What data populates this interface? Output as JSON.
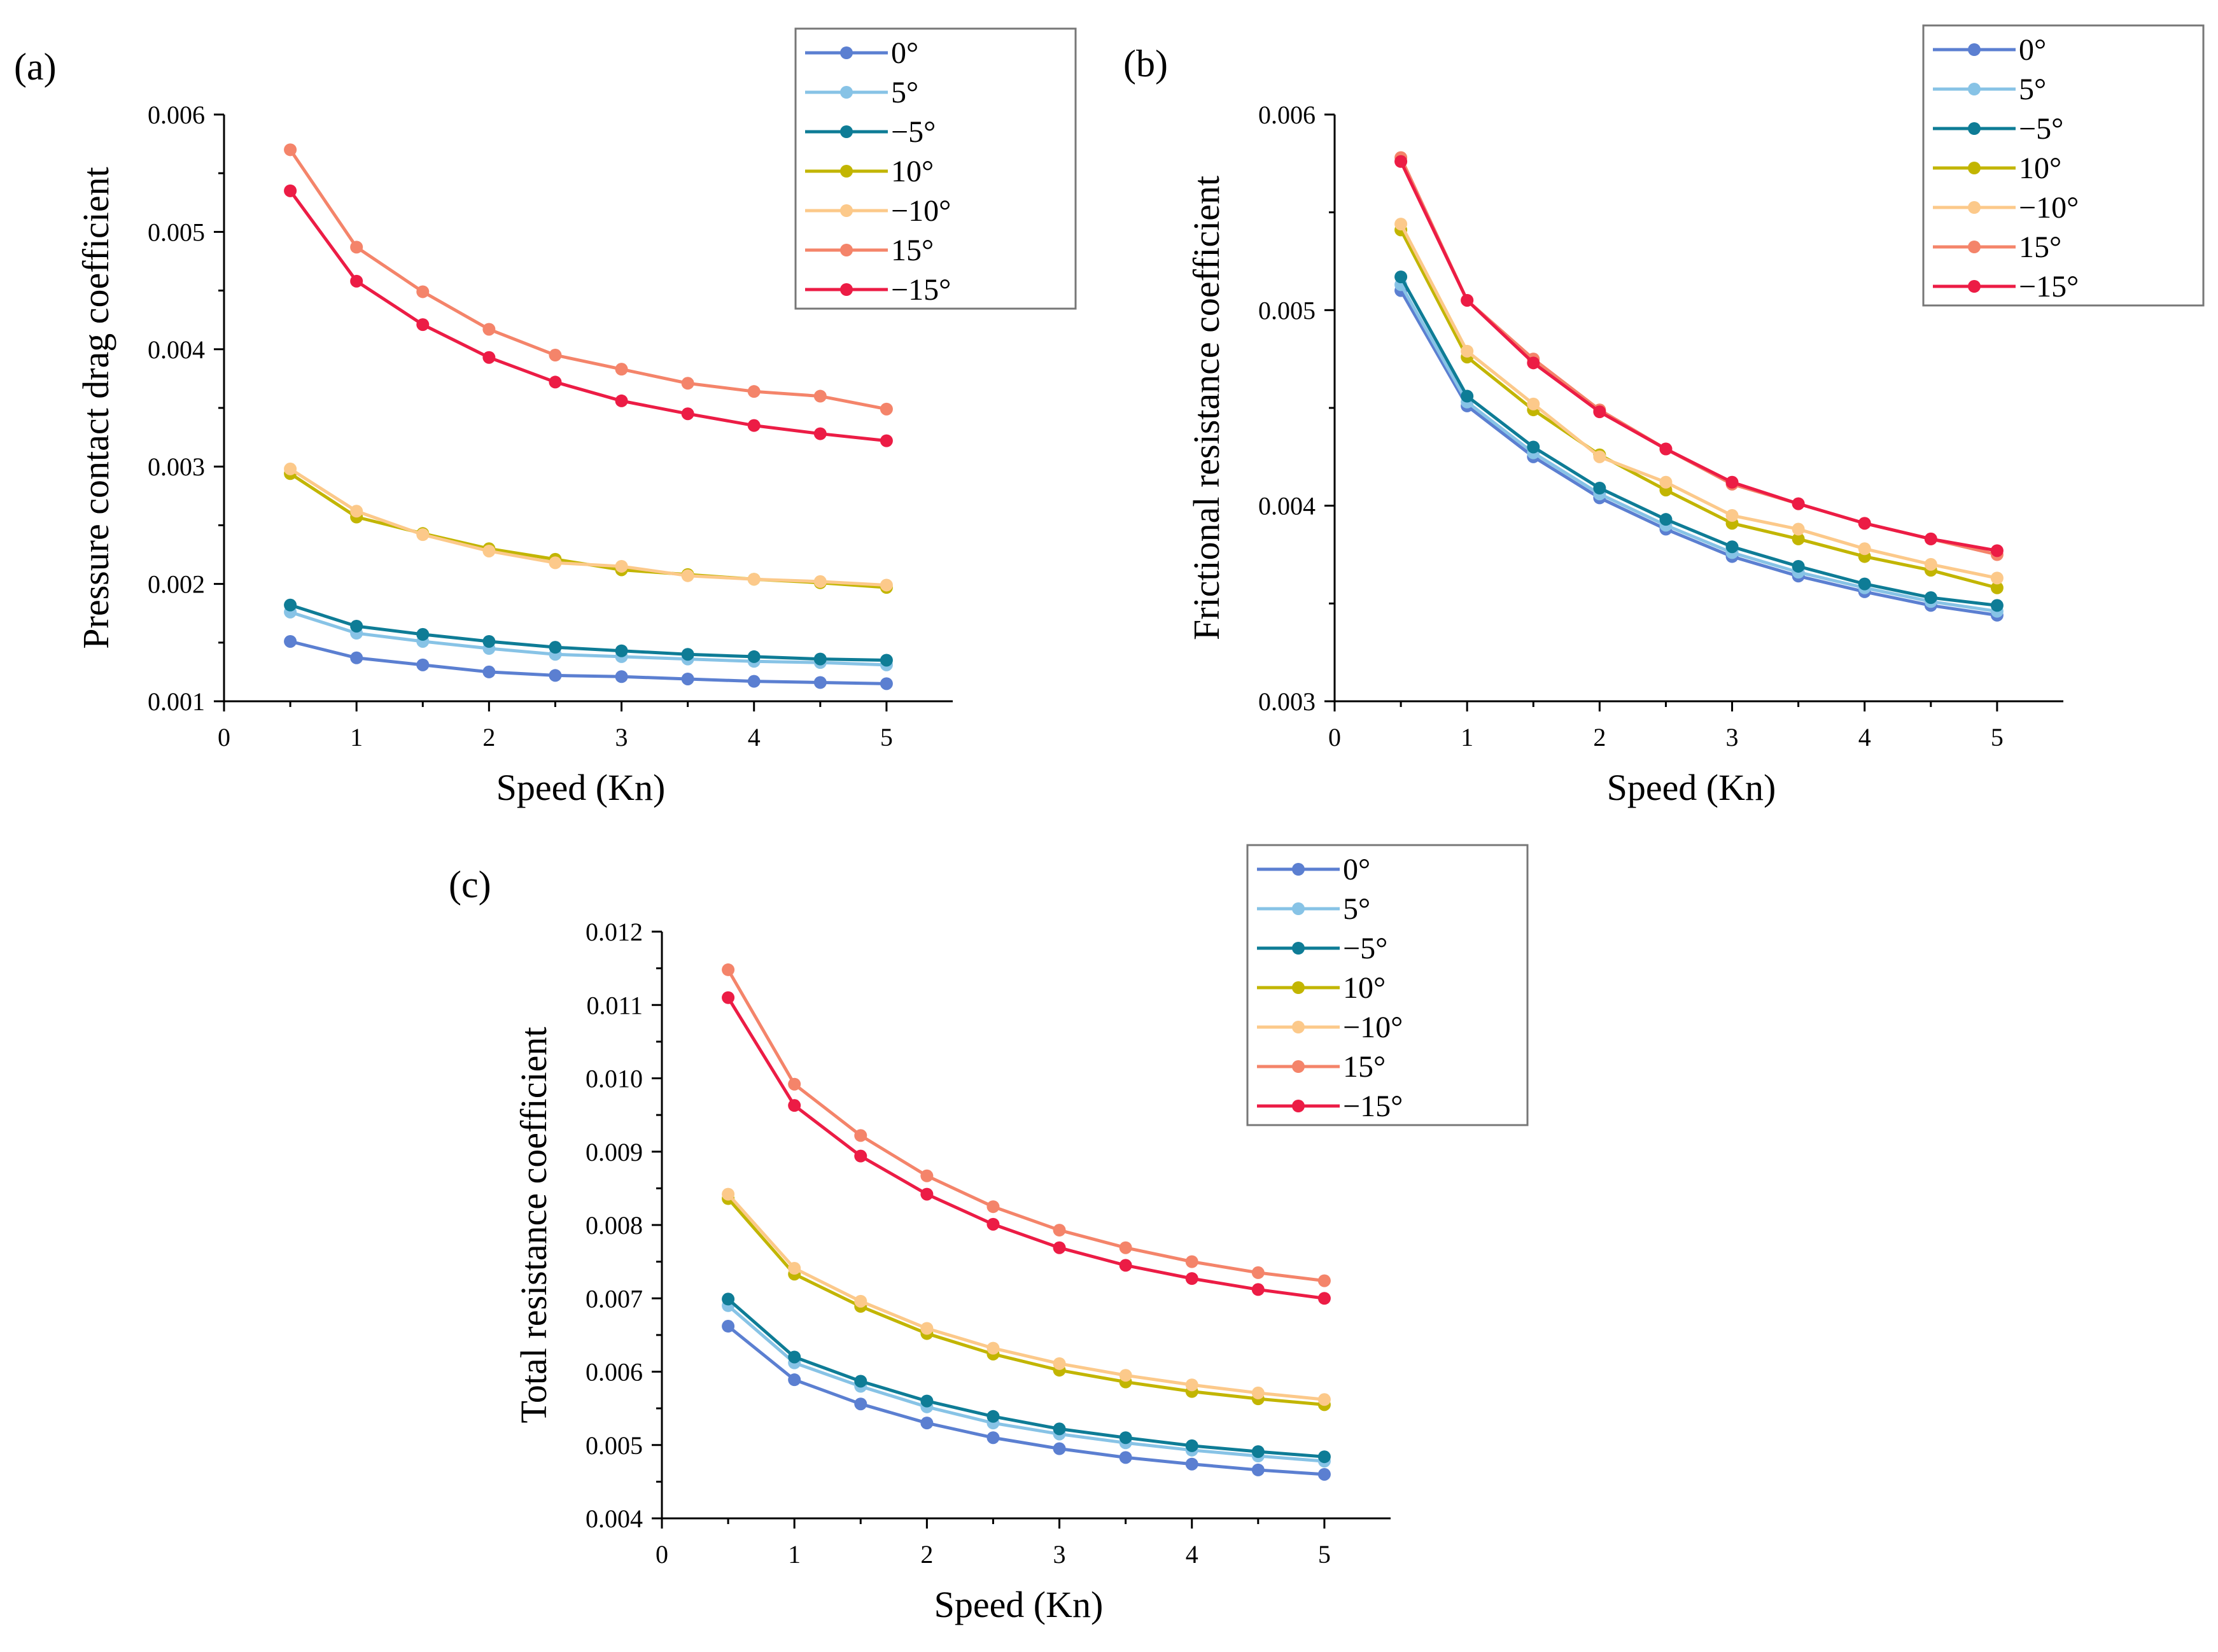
{
  "figure": {
    "panel_labels": [
      "(a)",
      "(b)",
      "(c)"
    ]
  },
  "legend": {
    "entries": [
      "0°",
      "5°",
      "−5°",
      "10°",
      "−10°",
      "15°",
      "−15°"
    ]
  },
  "series_colors": [
    "#5b7fd1",
    "#87c3e6",
    "#0e7c96",
    "#c2b500",
    "#fcc98a",
    "#f4846a",
    "#ec1c45"
  ],
  "chart_data": [
    {
      "type": "line",
      "panel": "(a)",
      "title": "",
      "xlabel": "Speed (Kn)",
      "ylabel": "Pressure contact drag coefficient",
      "xlim": [
        0,
        5.5
      ],
      "ylim": [
        0.001,
        0.006
      ],
      "xticks": [
        0,
        1,
        2,
        3,
        4,
        5
      ],
      "xtick_labels": [
        "0",
        "1",
        "2",
        "3",
        "4",
        "5"
      ],
      "yticks": [
        0.001,
        0.002,
        0.003,
        0.004,
        0.005,
        0.006
      ],
      "ytick_labels": [
        "0.001",
        "0.002",
        "0.003",
        "0.004",
        "0.005",
        "0.006"
      ],
      "grid": false,
      "legend_position": "top-right",
      "x": [
        0.5,
        1,
        1.5,
        2,
        2.5,
        3,
        3.5,
        4,
        4.5,
        5
      ],
      "series": [
        {
          "name": "0°",
          "values": [
            0.00151,
            0.00137,
            0.00131,
            0.00125,
            0.00122,
            0.00121,
            0.00119,
            0.00117,
            0.00116,
            0.00115
          ]
        },
        {
          "name": "5°",
          "values": [
            0.00176,
            0.00158,
            0.00151,
            0.00145,
            0.0014,
            0.00138,
            0.00136,
            0.00134,
            0.00133,
            0.00131
          ]
        },
        {
          "name": "−5°",
          "values": [
            0.00182,
            0.00164,
            0.00157,
            0.00151,
            0.00146,
            0.00143,
            0.0014,
            0.00138,
            0.00136,
            0.00135
          ]
        },
        {
          "name": "10°",
          "values": [
            0.00294,
            0.00257,
            0.00243,
            0.0023,
            0.00221,
            0.00212,
            0.00208,
            0.00204,
            0.00201,
            0.00197
          ]
        },
        {
          "name": "−10°",
          "values": [
            0.00298,
            0.00262,
            0.00242,
            0.00228,
            0.00218,
            0.00215,
            0.00207,
            0.00204,
            0.00202,
            0.00199
          ]
        },
        {
          "name": "15°",
          "values": [
            0.0057,
            0.00487,
            0.00449,
            0.00417,
            0.00395,
            0.00383,
            0.00371,
            0.00364,
            0.0036,
            0.00349
          ]
        },
        {
          "name": "−15°",
          "values": [
            0.00535,
            0.00458,
            0.00421,
            0.00393,
            0.00372,
            0.00356,
            0.00345,
            0.00335,
            0.00328,
            0.00322
          ]
        }
      ]
    },
    {
      "type": "line",
      "panel": "(b)",
      "title": "",
      "xlabel": "Speed (Kn)",
      "ylabel": "Frictional resistance coefficient",
      "xlim": [
        0,
        5.5
      ],
      "ylim": [
        0.003,
        0.006
      ],
      "xticks": [
        0,
        1,
        2,
        3,
        4,
        5
      ],
      "xtick_labels": [
        "0",
        "1",
        "2",
        "3",
        "4",
        "5"
      ],
      "yticks": [
        0.003,
        0.004,
        0.005,
        0.006
      ],
      "ytick_labels": [
        "0.003",
        "0.004",
        "0.005",
        "0.006"
      ],
      "grid": false,
      "legend_position": "top-right",
      "x": [
        0.5,
        1,
        1.5,
        2,
        2.5,
        3,
        3.5,
        4,
        4.5,
        5
      ],
      "series": [
        {
          "name": "0°",
          "values": [
            0.0051,
            0.00451,
            0.00425,
            0.00404,
            0.00388,
            0.00374,
            0.00364,
            0.00356,
            0.00349,
            0.00344
          ]
        },
        {
          "name": "5°",
          "values": [
            0.00513,
            0.00453,
            0.00427,
            0.00406,
            0.0039,
            0.00376,
            0.00366,
            0.00358,
            0.00351,
            0.00346
          ]
        },
        {
          "name": "−5°",
          "values": [
            0.00517,
            0.00456,
            0.0043,
            0.00409,
            0.00393,
            0.00379,
            0.00369,
            0.0036,
            0.00353,
            0.00349
          ]
        },
        {
          "name": "10°",
          "values": [
            0.00541,
            0.00476,
            0.00449,
            0.00426,
            0.00408,
            0.00391,
            0.00383,
            0.00374,
            0.00367,
            0.00358
          ]
        },
        {
          "name": "−10°",
          "values": [
            0.00544,
            0.00479,
            0.00452,
            0.00425,
            0.00412,
            0.00395,
            0.00388,
            0.00378,
            0.0037,
            0.00363
          ]
        },
        {
          "name": "15°",
          "values": [
            0.00578,
            0.00505,
            0.00475,
            0.00449,
            0.00429,
            0.00411,
            0.00401,
            0.00391,
            0.00383,
            0.00375
          ]
        },
        {
          "name": "−15°",
          "values": [
            0.00576,
            0.00505,
            0.00473,
            0.00448,
            0.00429,
            0.00412,
            0.00401,
            0.00391,
            0.00383,
            0.00377
          ]
        }
      ]
    },
    {
      "type": "line",
      "panel": "(c)",
      "title": "",
      "xlabel": "Speed (Kn)",
      "ylabel": "Total resistance coefficient",
      "xlim": [
        0,
        5.5
      ],
      "ylim": [
        0.004,
        0.012
      ],
      "xticks": [
        0,
        1,
        2,
        3,
        4,
        5
      ],
      "xtick_labels": [
        "0",
        "1",
        "2",
        "3",
        "4",
        "5"
      ],
      "yticks": [
        0.004,
        0.005,
        0.006,
        0.007,
        0.008,
        0.009,
        0.01,
        0.011,
        0.012
      ],
      "ytick_labels": [
        "0.004",
        "0.005",
        "0.006",
        "0.007",
        "0.008",
        "0.009",
        "0.010",
        "0.011",
        "0.012"
      ],
      "grid": false,
      "legend_position": "top-right",
      "x": [
        0.5,
        1,
        1.5,
        2,
        2.5,
        3,
        3.5,
        4,
        4.5,
        5
      ],
      "series": [
        {
          "name": "0°",
          "values": [
            0.00662,
            0.00589,
            0.00556,
            0.0053,
            0.0051,
            0.00495,
            0.00483,
            0.00474,
            0.00466,
            0.0046
          ]
        },
        {
          "name": "5°",
          "values": [
            0.0069,
            0.00612,
            0.0058,
            0.00552,
            0.0053,
            0.00515,
            0.00503,
            0.00493,
            0.00485,
            0.00478
          ]
        },
        {
          "name": "−5°",
          "values": [
            0.00699,
            0.0062,
            0.00587,
            0.0056,
            0.00539,
            0.00522,
            0.0051,
            0.00499,
            0.00491,
            0.00484
          ]
        },
        {
          "name": "10°",
          "values": [
            0.00836,
            0.00733,
            0.00689,
            0.00652,
            0.00624,
            0.00602,
            0.00586,
            0.00573,
            0.00563,
            0.00555
          ]
        },
        {
          "name": "−10°",
          "values": [
            0.00842,
            0.00741,
            0.00696,
            0.00659,
            0.00632,
            0.00611,
            0.00595,
            0.00582,
            0.00571,
            0.00562
          ]
        },
        {
          "name": "15°",
          "values": [
            0.01148,
            0.00992,
            0.00922,
            0.00867,
            0.00825,
            0.00793,
            0.00769,
            0.0075,
            0.00735,
            0.00724
          ]
        },
        {
          "name": "−15°",
          "values": [
            0.0111,
            0.00963,
            0.00894,
            0.00842,
            0.00801,
            0.00769,
            0.00745,
            0.00727,
            0.00712,
            0.007
          ]
        }
      ]
    }
  ]
}
